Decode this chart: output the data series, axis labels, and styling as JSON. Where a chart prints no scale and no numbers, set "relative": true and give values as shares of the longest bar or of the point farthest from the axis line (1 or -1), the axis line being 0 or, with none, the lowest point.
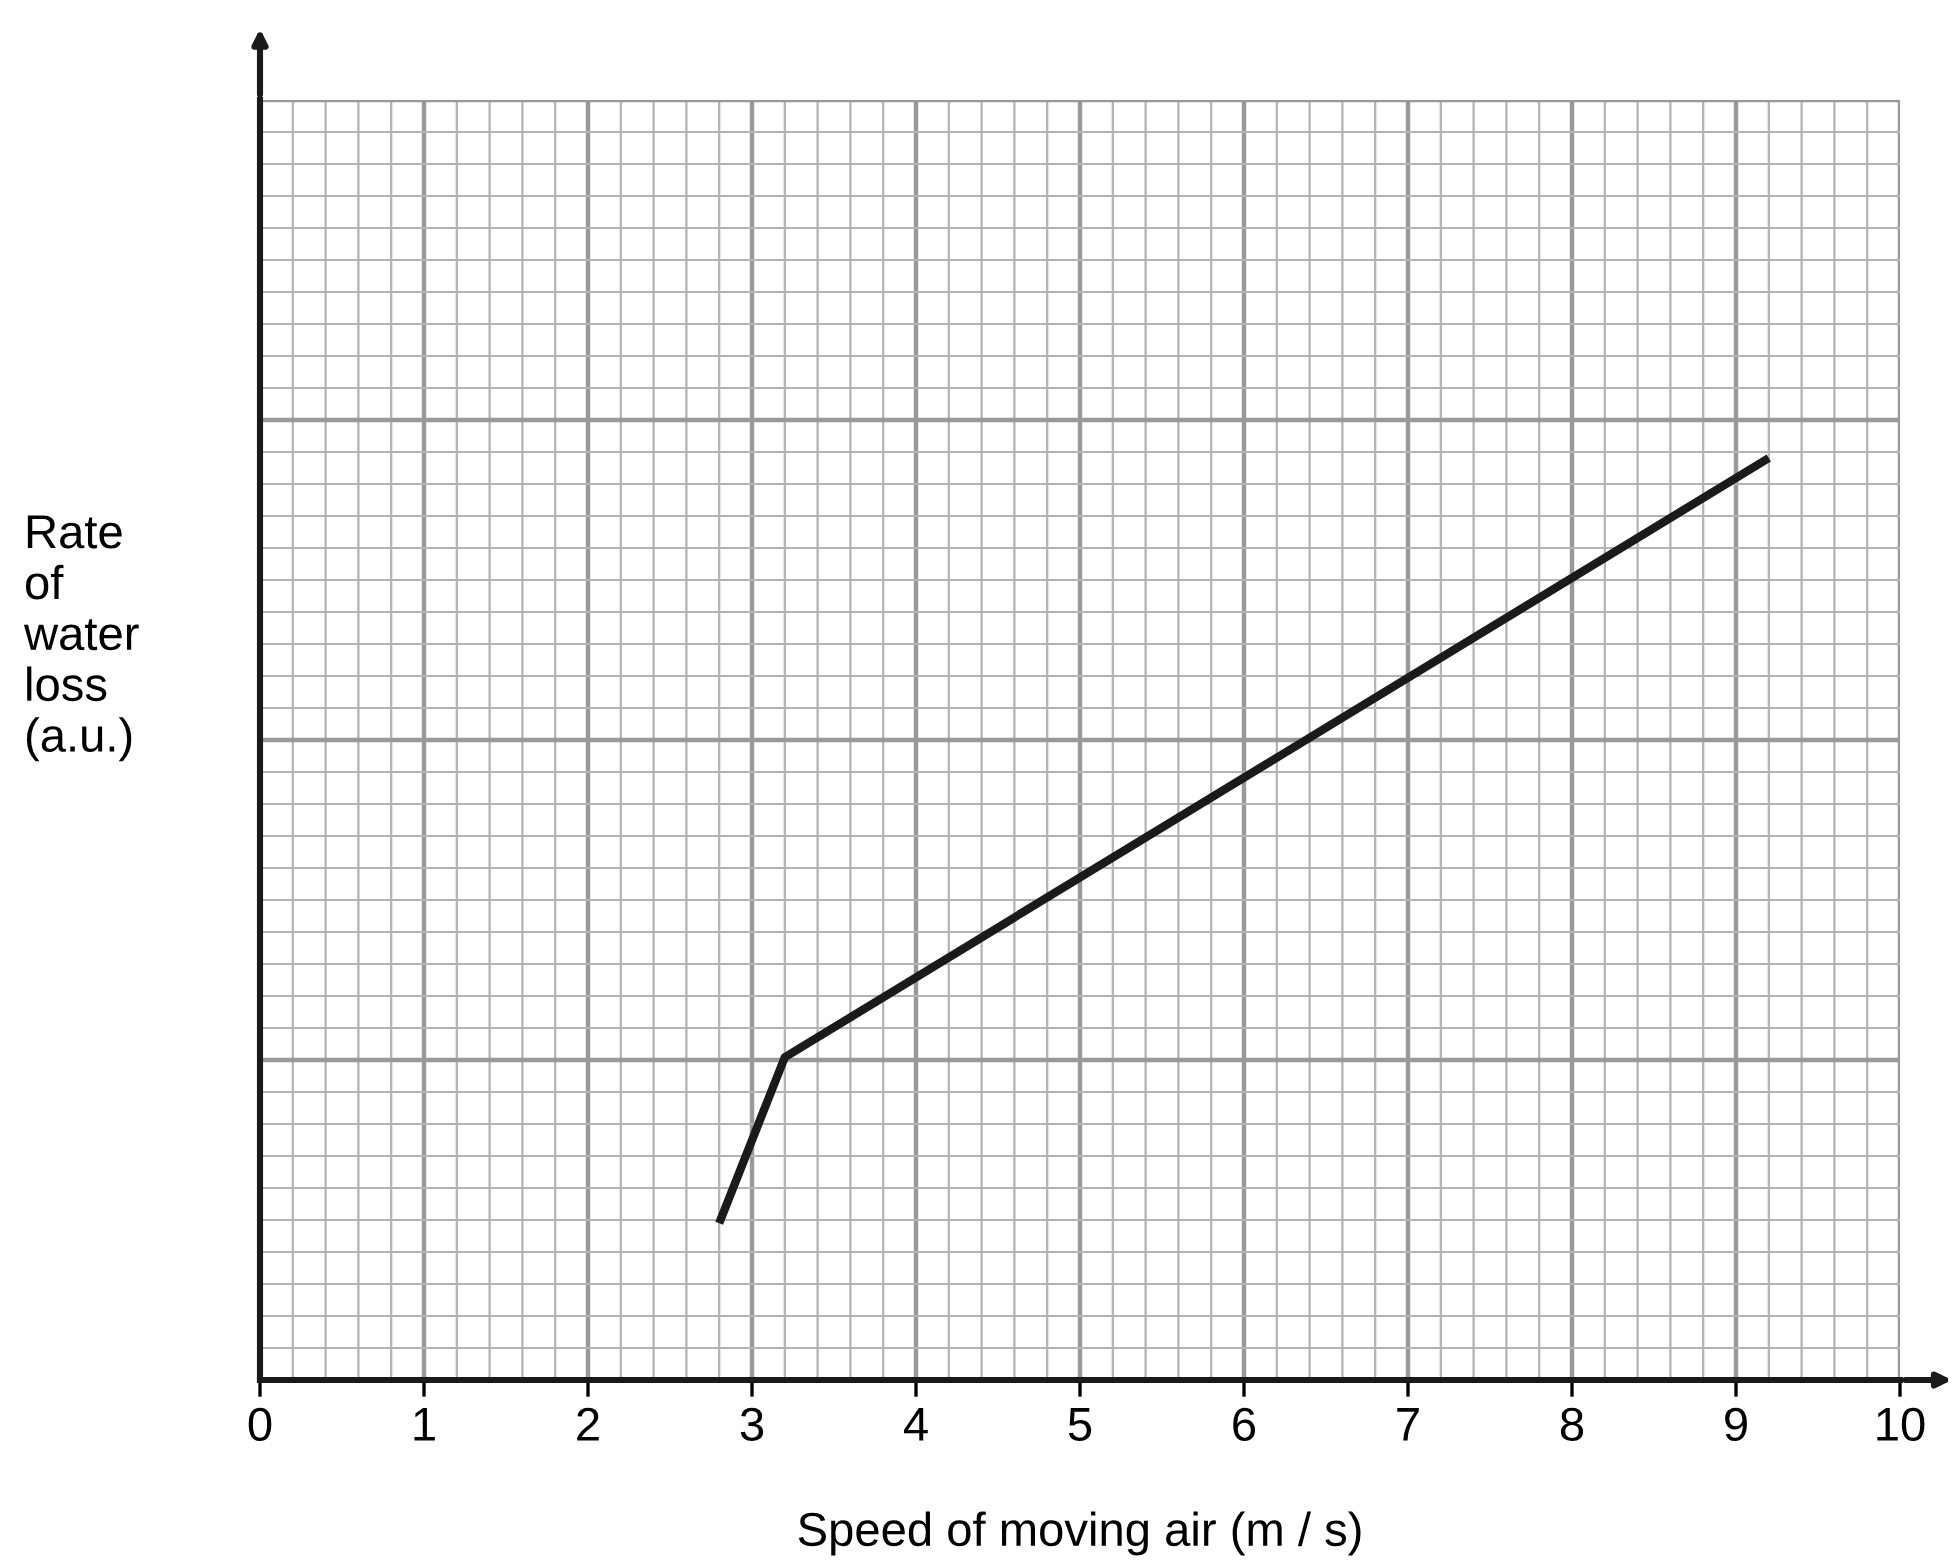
{
  "chart_data": {
    "type": "line",
    "relative": true,
    "xlabel": "Speed of moving air (m / s)",
    "ylabel": "Rate\nof\nwater\nloss\n(a.u.)",
    "xlim": [
      0,
      10
    ],
    "xticks": [
      0,
      1,
      2,
      3,
      4,
      5,
      6,
      7,
      8,
      9,
      10
    ],
    "grid": true,
    "marker": "none",
    "line_style": "solid",
    "series": [
      {
        "color": "#1a1a1a",
        "x": [
          2.8,
          3.2,
          9.2
        ],
        "values": [
          0.17,
          0.35,
          1
        ]
      }
    ]
  }
}
